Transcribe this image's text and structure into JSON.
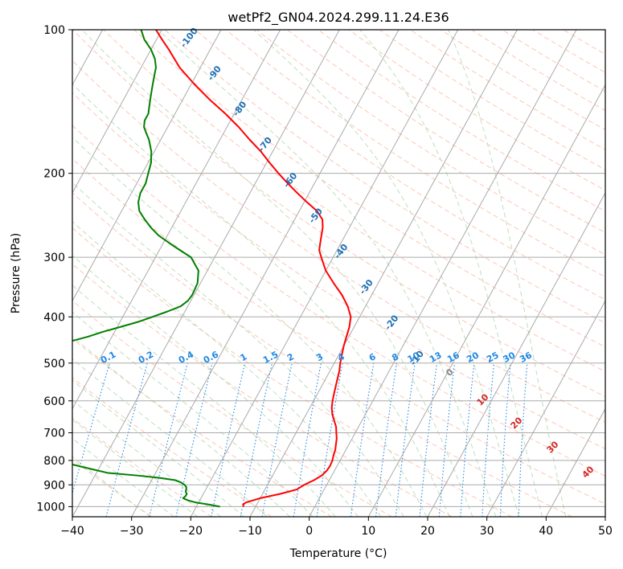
{
  "chart_data": {
    "type": "line",
    "title": "wetPf2_GN04.2024.299.11.24.E36",
    "xlabel": "Temperature (°C)",
    "ylabel": "Pressure (hPa)",
    "xlim": [
      -40,
      50
    ],
    "ylim": [
      1050,
      100
    ],
    "y_scale": "log",
    "skew": "skew-T",
    "x_ticks": [
      -40,
      -30,
      -20,
      -10,
      0,
      10,
      20,
      30,
      40,
      50
    ],
    "y_ticks": [
      100,
      200,
      300,
      400,
      500,
      600,
      700,
      800,
      900,
      1000
    ],
    "grid": true,
    "series": [
      {
        "role": "temperature",
        "color": "#ff0000",
        "points": [
          [
            1000,
            -12.0
          ],
          [
            990,
            -12.3
          ],
          [
            980,
            -12.0
          ],
          [
            960,
            -10.0
          ],
          [
            940,
            -7.0
          ],
          [
            920,
            -4.6
          ],
          [
            900,
            -3.8
          ],
          [
            880,
            -2.6
          ],
          [
            860,
            -1.7
          ],
          [
            840,
            -1.3
          ],
          [
            820,
            -1.2
          ],
          [
            800,
            -1.3
          ],
          [
            780,
            -1.6
          ],
          [
            760,
            -1.8
          ],
          [
            740,
            -2.2
          ],
          [
            720,
            -2.6
          ],
          [
            700,
            -3.2
          ],
          [
            680,
            -3.8
          ],
          [
            660,
            -4.7
          ],
          [
            640,
            -5.6
          ],
          [
            620,
            -6.3
          ],
          [
            600,
            -6.8
          ],
          [
            580,
            -7.2
          ],
          [
            560,
            -7.6
          ],
          [
            540,
            -8.0
          ],
          [
            520,
            -8.4
          ],
          [
            500,
            -9.0
          ],
          [
            480,
            -9.5
          ],
          [
            460,
            -10.0
          ],
          [
            440,
            -10.4
          ],
          [
            420,
            -10.8
          ],
          [
            400,
            -11.5
          ],
          [
            380,
            -13.0
          ],
          [
            360,
            -15.0
          ],
          [
            340,
            -17.5
          ],
          [
            320,
            -20.0
          ],
          [
            300,
            -22.0
          ],
          [
            290,
            -23.0
          ],
          [
            280,
            -23.5
          ],
          [
            270,
            -24.0
          ],
          [
            260,
            -24.5
          ],
          [
            250,
            -25.3
          ],
          [
            240,
            -27.0
          ],
          [
            230,
            -29.5
          ],
          [
            220,
            -32.0
          ],
          [
            210,
            -34.5
          ],
          [
            200,
            -37.0
          ],
          [
            190,
            -39.5
          ],
          [
            180,
            -42.0
          ],
          [
            170,
            -45.0
          ],
          [
            160,
            -48.0
          ],
          [
            150,
            -51.5
          ],
          [
            140,
            -55.5
          ],
          [
            130,
            -59.5
          ],
          [
            120,
            -63.5
          ],
          [
            110,
            -67.0
          ],
          [
            105,
            -69.0
          ],
          [
            100,
            -71.0
          ]
        ]
      },
      {
        "role": "dewpoint",
        "color": "#008000",
        "points": [
          [
            1000,
            -16.0
          ],
          [
            990,
            -18.0
          ],
          [
            980,
            -20.5
          ],
          [
            970,
            -22.0
          ],
          [
            960,
            -23.0
          ],
          [
            950,
            -22.8
          ],
          [
            940,
            -22.8
          ],
          [
            930,
            -23.2
          ],
          [
            920,
            -23.3
          ],
          [
            910,
            -23.5
          ],
          [
            900,
            -24.0
          ],
          [
            890,
            -24.8
          ],
          [
            880,
            -26.0
          ],
          [
            870,
            -29.0
          ],
          [
            860,
            -33.0
          ],
          [
            850,
            -38.0
          ],
          [
            840,
            -40.0
          ],
          [
            825,
            -43.0
          ],
          [
            815,
            -45.0
          ],
          [
            800,
            -46.0
          ],
          [
            790,
            -47.0
          ],
          [
            780,
            -47.5
          ],
          [
            770,
            -48.0
          ],
          [
            760,
            -49.0
          ],
          [
            750,
            -50.0
          ],
          [
            740,
            -51.5
          ],
          [
            730,
            -54.0
          ],
          [
            720,
            -56.0
          ],
          [
            710,
            -57.0
          ],
          [
            700,
            -58.0
          ],
          [
            690,
            -57.0
          ],
          [
            680,
            -54.0
          ],
          [
            670,
            -53.5
          ],
          [
            660,
            -54.5
          ],
          [
            650,
            -56.0
          ],
          [
            640,
            -57.0
          ],
          [
            630,
            -57.5
          ],
          [
            620,
            -58.5
          ],
          [
            610,
            -59.5
          ],
          [
            600,
            -60.0
          ],
          [
            590,
            -62.0
          ],
          [
            560,
            -64.0
          ],
          [
            540,
            -66.0
          ],
          [
            520,
            -68.0
          ],
          [
            500,
            -70.0
          ],
          [
            480,
            -65.0
          ],
          [
            470,
            -62.0
          ],
          [
            460,
            -59.0
          ],
          [
            450,
            -56.5
          ],
          [
            440,
            -54.0
          ],
          [
            430,
            -52.0
          ],
          [
            420,
            -49.5
          ],
          [
            410,
            -47.0
          ],
          [
            400,
            -45.0
          ],
          [
            390,
            -43.0
          ],
          [
            380,
            -41.2
          ],
          [
            370,
            -40.5
          ],
          [
            360,
            -40.3
          ],
          [
            340,
            -40.5
          ],
          [
            320,
            -41.5
          ],
          [
            300,
            -44.0
          ],
          [
            290,
            -46.5
          ],
          [
            280,
            -49.0
          ],
          [
            270,
            -51.5
          ],
          [
            260,
            -53.5
          ],
          [
            250,
            -55.3
          ],
          [
            240,
            -57.0
          ],
          [
            230,
            -58.0
          ],
          [
            220,
            -58.5
          ],
          [
            210,
            -58.5
          ],
          [
            200,
            -59.0
          ],
          [
            190,
            -59.5
          ],
          [
            180,
            -60.5
          ],
          [
            170,
            -62.0
          ],
          [
            165,
            -63.0
          ],
          [
            160,
            -64.0
          ],
          [
            155,
            -64.5
          ],
          [
            150,
            -64.5
          ],
          [
            145,
            -65.0
          ],
          [
            140,
            -65.5
          ],
          [
            135,
            -66.0
          ],
          [
            130,
            -66.5
          ],
          [
            125,
            -67.0
          ],
          [
            120,
            -67.5
          ],
          [
            115,
            -68.5
          ],
          [
            110,
            -70.0
          ],
          [
            105,
            -72.0
          ],
          [
            100,
            -73.5
          ]
        ]
      }
    ],
    "reference_lines": {
      "isotherms": {
        "color": "#aaaaaa",
        "step": 10
      },
      "dry_adiabats": {
        "color": "#fdb8a3",
        "style": "dashed"
      },
      "moist_adiabats": {
        "color": "#b7dcb7",
        "style": "dashed"
      },
      "mixing_ratio": {
        "color": "#1e88e5",
        "style": "dotted",
        "labels": [
          "0.1",
          "0.2",
          "0.4",
          "0.6",
          "1",
          "1.5",
          "2",
          "3",
          "4",
          "6",
          "8",
          "10",
          "13",
          "16",
          "20",
          "25",
          "30",
          "36"
        ],
        "label_pressure": 500
      },
      "isentrope_labels_blue": {
        "color": "#1f6fb2",
        "labels": [
          "-100",
          "-90",
          "-80",
          "-70",
          "-60",
          "-50",
          "-40",
          "-30",
          "-20",
          "-10"
        ]
      },
      "isentrope_labels_red": {
        "color": "#d62728",
        "labels": [
          "0",
          "10",
          "20",
          "30",
          "40"
        ]
      }
    }
  }
}
